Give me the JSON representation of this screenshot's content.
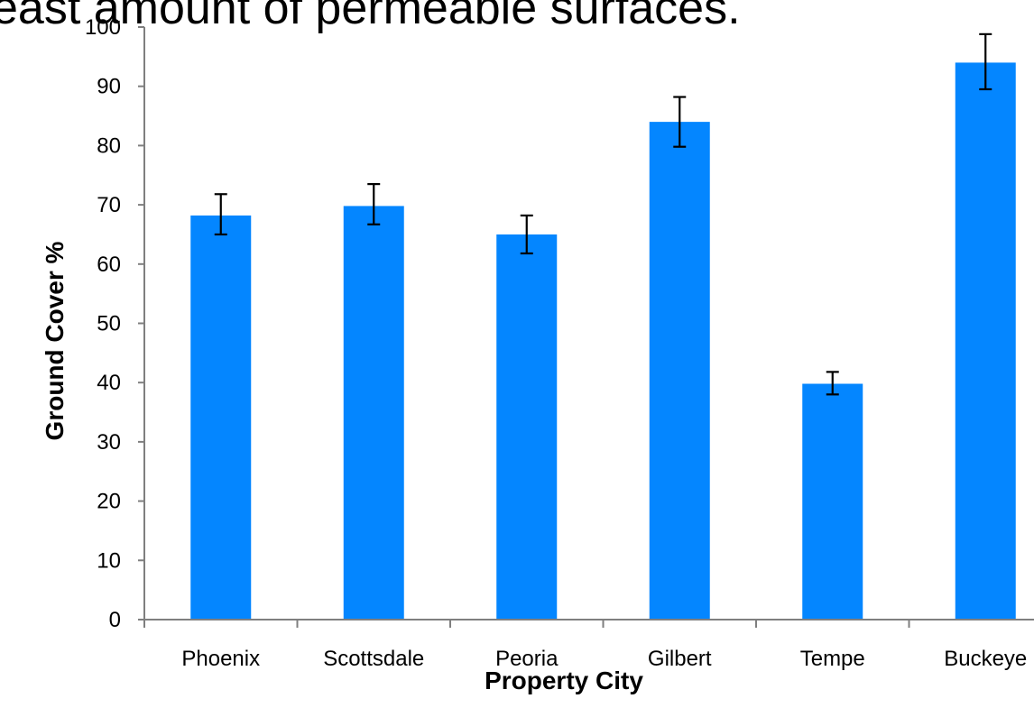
{
  "chart_data": {
    "type": "bar",
    "title": "least amount of permeable surfaces.",
    "xlabel": "Property City",
    "ylabel": "Ground Cover %",
    "categories": [
      "Phoenix",
      "Scottsdale",
      "Peoria",
      "Gilbert",
      "Tempe",
      "Buckeye"
    ],
    "values": [
      68.2,
      69.8,
      65.0,
      84.0,
      39.8,
      94.0
    ],
    "error_bars": [
      {
        "low": 65.0,
        "high": 71.8
      },
      {
        "low": 66.7,
        "high": 73.5
      },
      {
        "low": 61.8,
        "high": 68.2
      },
      {
        "low": 79.8,
        "high": 88.2
      },
      {
        "low": 38.0,
        "high": 41.8
      },
      {
        "low": 89.5,
        "high": 98.8
      }
    ],
    "ylim": [
      0,
      100
    ],
    "yticks": [
      0,
      10,
      20,
      30,
      40,
      50,
      60,
      70,
      80,
      90,
      100
    ],
    "grid": false,
    "legend": "none",
    "bar_color": "#0486ff"
  }
}
